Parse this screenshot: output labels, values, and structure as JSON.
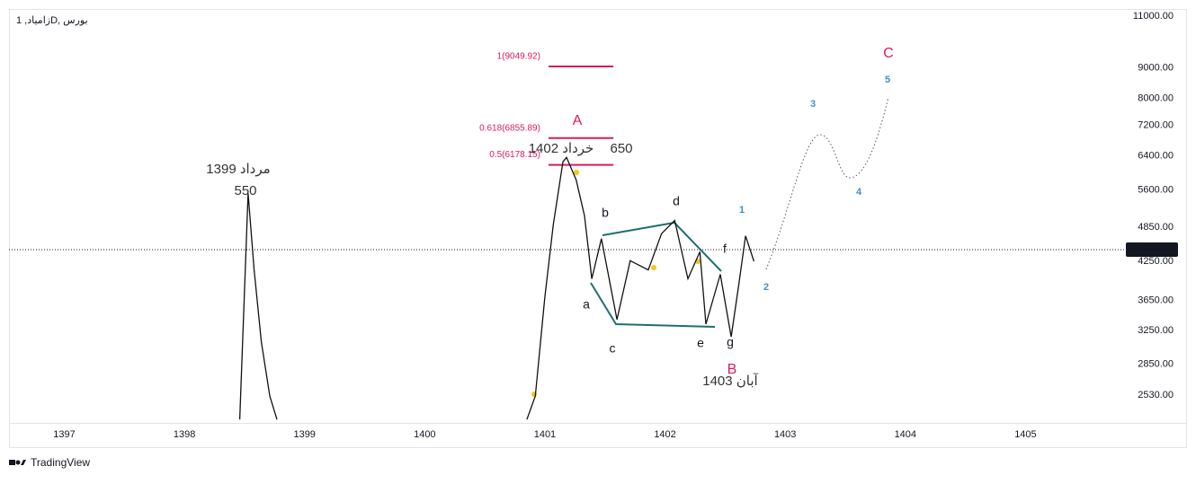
{
  "chart_data": {
    "type": "line",
    "title": "زامیاد, 1D, بورس",
    "brand": "TradingView",
    "log_scale": true,
    "grid": false,
    "xlim": [
      1396.54,
      1405.82
    ],
    "xticks": [
      1397,
      1398,
      1399,
      1400,
      1401,
      1402,
      1403,
      1404,
      1405
    ],
    "ylim": [
      2270,
      11310
    ],
    "yticks": [
      {
        "value": 11000,
        "label": "11000.00"
      },
      {
        "value": 9000,
        "label": "9000.00"
      },
      {
        "value": 8000,
        "label": "8000.00"
      },
      {
        "value": 7200,
        "label": "7200.00"
      },
      {
        "value": 6400,
        "label": "6400.00"
      },
      {
        "value": 5600,
        "label": "5600.00"
      },
      {
        "value": 4850,
        "label": "4850.00"
      },
      {
        "value": 4250,
        "label": "4250.00"
      },
      {
        "value": 3650,
        "label": "3650.00"
      },
      {
        "value": 3250,
        "label": "3250.00"
      },
      {
        "value": 2850,
        "label": "2850.00"
      },
      {
        "value": 2530,
        "label": "2530.00"
      }
    ],
    "last_price": {
      "value": 4446,
      "label": "4446.00"
    },
    "series": [
      {
        "color": "#111111",
        "x": [
          1398.46,
          1398.53,
          1398.58,
          1398.64,
          1398.71,
          1398.77,
          null,
          1400.85,
          1400.92,
          1401.0,
          1401.07,
          1401.15,
          1401.18,
          1401.26,
          1401.33,
          1401.39,
          1401.47,
          1401.6,
          1401.71,
          1401.86,
          1401.97,
          1402.08,
          1402.19,
          1402.29,
          1402.34,
          1402.46,
          1402.55,
          1402.61,
          1402.67,
          1402.74
        ],
        "values": [
          2300,
          5530,
          4110,
          3110,
          2520,
          2300,
          null,
          2300,
          2520,
          3700,
          4900,
          6250,
          6360,
          5830,
          5070,
          3970,
          4640,
          3390,
          4260,
          4110,
          4730,
          4980,
          3970,
          4410,
          3330,
          4040,
          3170,
          3840,
          4690,
          4250
        ]
      }
    ],
    "fib_color": "#d81b60",
    "fib_x": [
      1401.03,
      1401.57
    ],
    "fib_levels": [
      {
        "value": 9049.92,
        "label": "1(9049.92)"
      },
      {
        "value": 6855.89,
        "label": "0.618(6855.89)"
      },
      {
        "value": 6178.15,
        "label": "0.5(6178.15)"
      }
    ],
    "wave_labels": [
      "A",
      "B",
      "C"
    ],
    "sub_labels": [
      "a",
      "b",
      "c",
      "d",
      "e",
      "f",
      "g"
    ],
    "count_labels": [
      "1",
      "2",
      "3",
      "4",
      "5"
    ],
    "notes": [
      "مرداد 1399",
      "550",
      "خرداد 1402",
      "650",
      "آبان 1403"
    ]
  }
}
